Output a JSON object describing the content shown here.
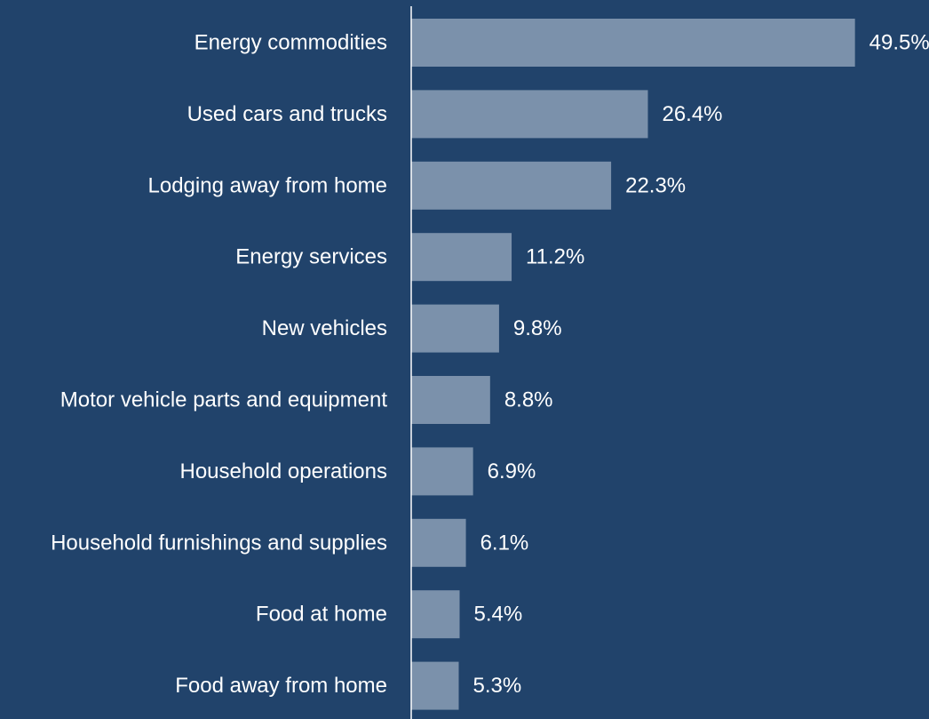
{
  "chart_data": {
    "type": "bar",
    "orientation": "horizontal",
    "categories": [
      "Energy commodities",
      "Used cars and trucks",
      "Lodging away from home",
      "Energy services",
      "New vehicles",
      "Motor vehicle parts and equipment",
      "Household operations",
      "Household furnishings and supplies",
      "Food at home",
      "Food away from home"
    ],
    "values": [
      49.5,
      26.4,
      22.3,
      11.2,
      9.8,
      8.8,
      6.9,
      6.1,
      5.4,
      5.3
    ],
    "value_labels": [
      "49.5%",
      "26.4%",
      "22.3%",
      "11.2%",
      "9.8%",
      "8.8%",
      "6.9%",
      "6.1%",
      "5.4%",
      "5.3%"
    ],
    "xlim": [
      0,
      53.2
    ],
    "grid": false,
    "legend": "none"
  },
  "colors": {
    "background": "#21436b",
    "bar": "#7b91ab",
    "axis": "#ffffff",
    "text": "#ffffff"
  }
}
